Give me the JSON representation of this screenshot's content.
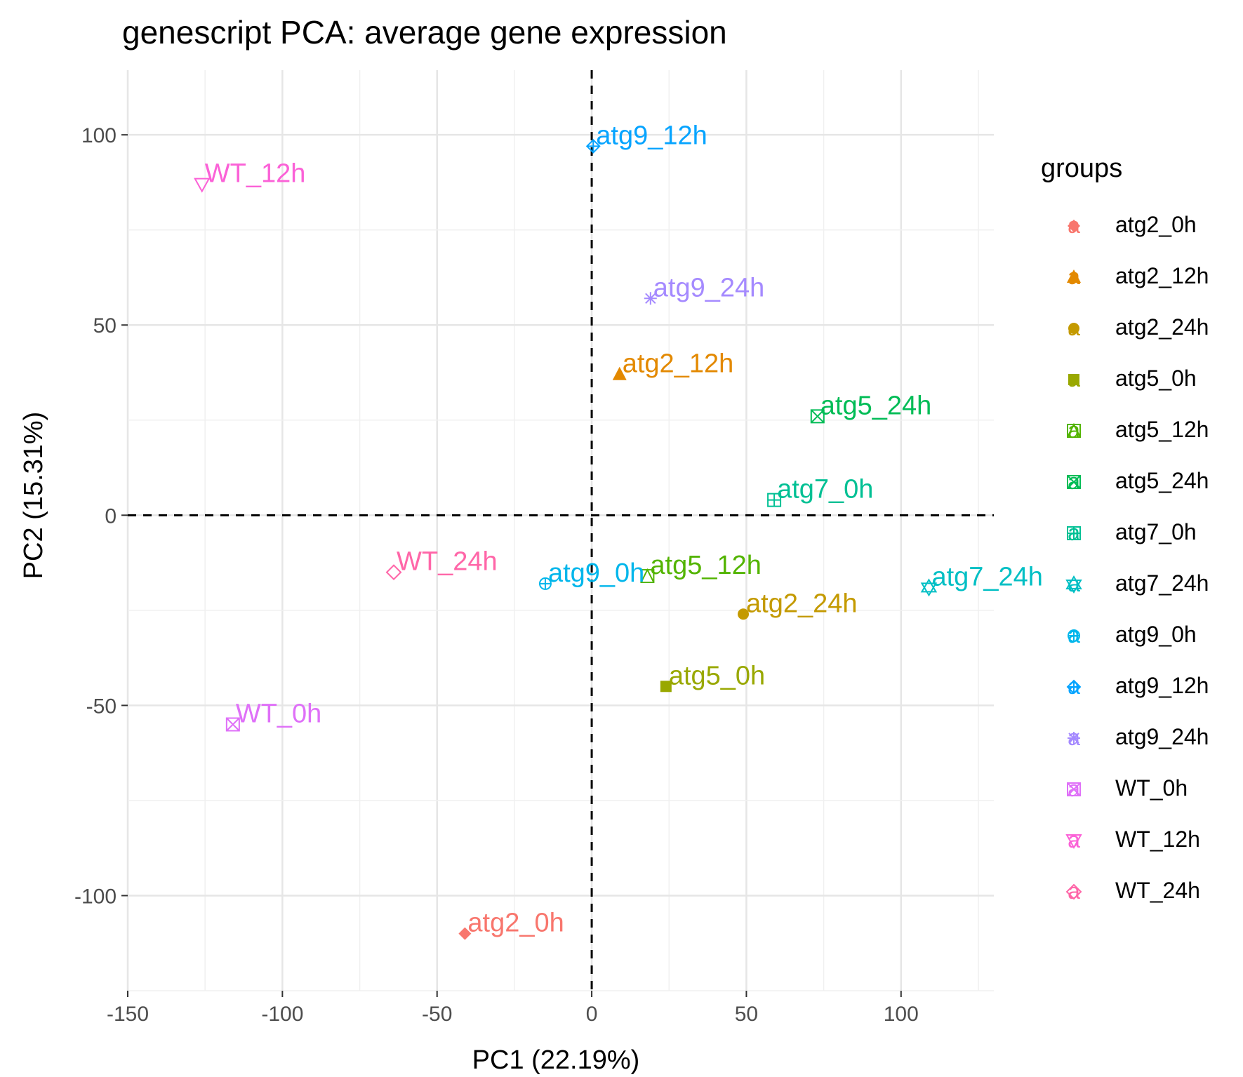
{
  "chart_data": {
    "type": "scatter",
    "title": "genescript PCA: average gene expression",
    "xlabel": "PC1 (22.19%)",
    "ylabel": "PC2 (15.31%)",
    "xlim": [
      -150,
      130
    ],
    "ylim": [
      -125,
      117
    ],
    "x_ticks": [
      -150,
      -100,
      -50,
      0,
      50,
      100
    ],
    "x_tick_labels": [
      "-150",
      "-100",
      "-50",
      "0",
      "50",
      "100"
    ],
    "y_ticks": [
      -100,
      -50,
      0,
      50,
      100
    ],
    "y_tick_labels": [
      "-100",
      "-50",
      "0",
      "50",
      "100"
    ],
    "grid": true,
    "reference_lines": {
      "x": 0,
      "y": 0,
      "style": "dashed"
    },
    "legend": {
      "title": "groups",
      "placement": "right"
    },
    "series": [
      {
        "name": "atg2_0h",
        "color": "#F8766D",
        "shape": "diamond-filled",
        "x": -41,
        "y": -110
      },
      {
        "name": "atg2_12h",
        "color": "#E38900",
        "shape": "triangle-filled",
        "x": 9,
        "y": 37
      },
      {
        "name": "atg2_24h",
        "color": "#C49A00",
        "shape": "circle-filled",
        "x": 49,
        "y": -26
      },
      {
        "name": "atg5_0h",
        "color": "#99A800",
        "shape": "square-filled",
        "x": 24,
        "y": -45
      },
      {
        "name": "atg5_12h",
        "color": "#53B400",
        "shape": "square-triangle",
        "x": 18,
        "y": -16
      },
      {
        "name": "atg5_24h",
        "color": "#00BC56",
        "shape": "square-cross",
        "x": 73,
        "y": 26
      },
      {
        "name": "atg7_0h",
        "color": "#00C094",
        "shape": "square-plus",
        "x": 59,
        "y": 4
      },
      {
        "name": "atg7_24h",
        "color": "#00BFC4",
        "shape": "star-of-david",
        "x": 109,
        "y": -19
      },
      {
        "name": "atg9_0h",
        "color": "#00B6EB",
        "shape": "circle-plus",
        "x": -15,
        "y": -18
      },
      {
        "name": "atg9_12h",
        "color": "#06A4FF",
        "shape": "diamond-plus",
        "x": 0.5,
        "y": 97
      },
      {
        "name": "atg9_24h",
        "color": "#A58AFF",
        "shape": "asterisk",
        "x": 19,
        "y": 57
      },
      {
        "name": "WT_0h",
        "color": "#DF70F8",
        "shape": "square-x",
        "x": -116,
        "y": -55
      },
      {
        "name": "WT_12h",
        "color": "#FB61D7",
        "shape": "triangle-down",
        "x": -126,
        "y": 87
      },
      {
        "name": "WT_24h",
        "color": "#FF66A8",
        "shape": "diamond-open",
        "x": -64,
        "y": -15
      }
    ]
  },
  "legend_key_glyph": "a"
}
